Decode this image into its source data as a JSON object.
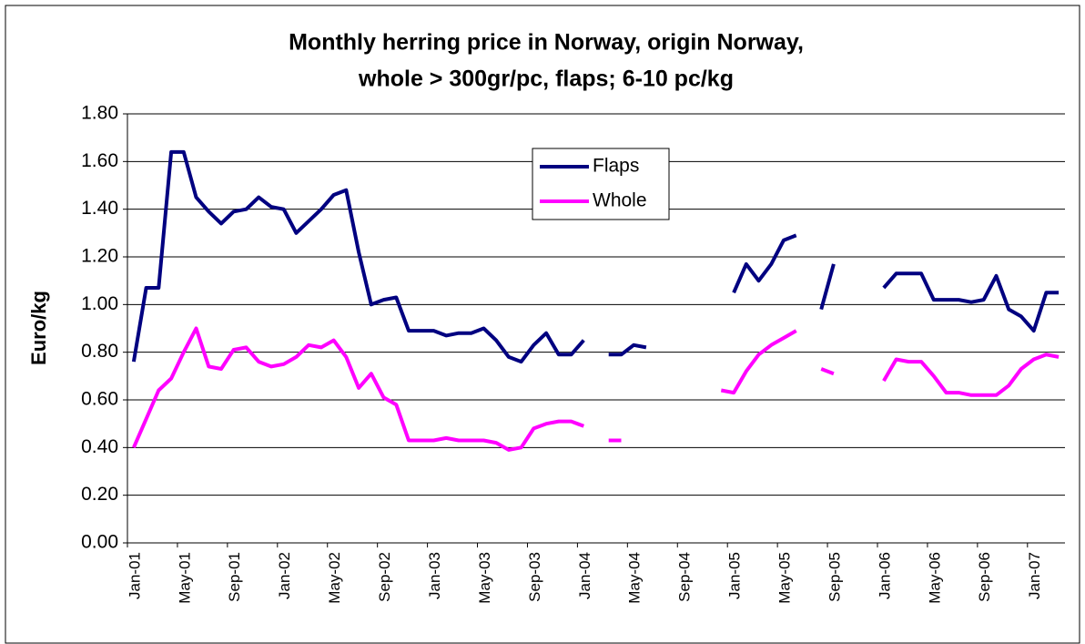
{
  "chart_data": {
    "type": "line",
    "title": [
      "Monthly herring price in Norway, origin Norway,",
      "whole > 300gr/pc, flaps; 6-10 pc/kg"
    ],
    "y_label": "Euro/kg",
    "categories": [
      "Jan-01",
      null,
      null,
      null,
      "May-01",
      null,
      null,
      null,
      "Sep-01",
      null,
      null,
      null,
      "Jan-02",
      null,
      null,
      null,
      "May-02",
      null,
      null,
      null,
      "Sep-02",
      null,
      null,
      null,
      "Jan-03",
      null,
      null,
      null,
      "May-03",
      null,
      null,
      null,
      "Sep-03",
      null,
      null,
      null,
      "Jan-04",
      null,
      null,
      null,
      "May-04",
      null,
      null,
      null,
      "Sep-04",
      null,
      null,
      null,
      "Jan-05",
      null,
      null,
      null,
      "May-05",
      null,
      null,
      null,
      "Sep-05",
      null,
      null,
      null,
      "Jan-06",
      null,
      null,
      null,
      "May-06",
      null,
      null,
      null,
      "Sep-06",
      null,
      null,
      null,
      "Jan-07",
      null,
      null
    ],
    "series": [
      {
        "name": "Flaps",
        "color": "#000080",
        "values": [
          0.76,
          1.07,
          1.07,
          1.64,
          1.64,
          1.45,
          1.39,
          1.34,
          1.39,
          1.4,
          1.45,
          1.41,
          1.4,
          1.3,
          1.35,
          1.4,
          1.46,
          1.48,
          1.22,
          1.0,
          1.02,
          1.03,
          0.89,
          0.89,
          0.89,
          0.87,
          0.88,
          0.88,
          0.9,
          0.85,
          0.78,
          0.76,
          0.83,
          0.88,
          0.79,
          0.79,
          0.85,
          null,
          0.79,
          0.79,
          0.83,
          0.82,
          null,
          null,
          null,
          null,
          null,
          null,
          1.05,
          1.17,
          1.1,
          1.17,
          1.27,
          1.29,
          null,
          0.98,
          1.17,
          null,
          null,
          null,
          1.07,
          1.13,
          1.13,
          1.13,
          1.02,
          1.02,
          1.02,
          1.01,
          1.02,
          1.12,
          0.98,
          0.95,
          0.89,
          1.05,
          1.05
        ]
      },
      {
        "name": "Whole",
        "color": "#ff00ff",
        "values": [
          0.4,
          0.52,
          0.64,
          0.69,
          0.8,
          0.9,
          0.74,
          0.73,
          0.81,
          0.82,
          0.76,
          0.74,
          0.75,
          0.78,
          0.83,
          0.82,
          0.85,
          0.78,
          0.65,
          0.71,
          0.61,
          0.58,
          0.43,
          0.43,
          0.43,
          0.44,
          0.43,
          0.43,
          0.43,
          0.42,
          0.39,
          0.4,
          0.48,
          0.5,
          0.51,
          0.51,
          0.49,
          null,
          0.43,
          0.43,
          null,
          null,
          null,
          null,
          null,
          null,
          null,
          0.64,
          0.63,
          0.72,
          0.79,
          0.83,
          0.86,
          0.89,
          null,
          0.73,
          0.71,
          null,
          null,
          null,
          0.68,
          0.77,
          0.76,
          0.76,
          0.7,
          0.63,
          0.63,
          0.62,
          0.62,
          0.62,
          0.66,
          0.73,
          0.77,
          0.79,
          0.78
        ]
      }
    ],
    "ylim": [
      0,
      1.8
    ],
    "yticks": [
      {
        "value": 0,
        "label": "0.00"
      },
      {
        "value": 0.2,
        "label": "0.20"
      },
      {
        "value": 0.4,
        "label": "0.40"
      },
      {
        "value": 0.6,
        "label": "0.60"
      },
      {
        "value": 0.8,
        "label": "0.80"
      },
      {
        "value": 1,
        "label": "1.00"
      },
      {
        "value": 1.2,
        "label": "1.20"
      },
      {
        "value": 1.4,
        "label": "1.40"
      },
      {
        "value": 1.6,
        "label": "1.60"
      },
      {
        "value": 1.8,
        "label": "1.80"
      }
    ],
    "grid": true,
    "legend": "top"
  }
}
